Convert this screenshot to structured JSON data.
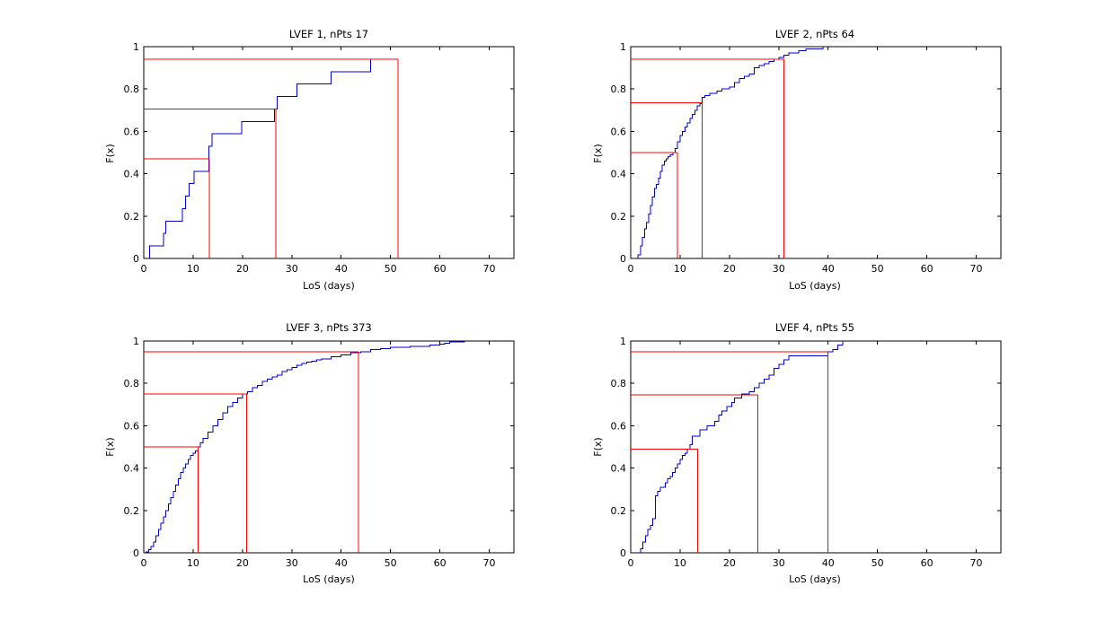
{
  "colors": {
    "ecdf": "#0000cc",
    "quantile": "#ff0000",
    "axes": "#000000",
    "background": "#ffffff"
  },
  "chart_data": [
    {
      "type": "line",
      "step": true,
      "title": "LVEF 1, nPts 17",
      "xlabel": "LoS (days)",
      "ylabel": "F(x)",
      "xlim": [
        0,
        75
      ],
      "ylim": [
        0,
        1
      ],
      "xticks": [
        "0",
        "10",
        "20",
        "30",
        "40",
        "50",
        "60",
        "70"
      ],
      "yticks": [
        "0",
        "0.2",
        "0.4",
        "0.6",
        "0.8",
        "1"
      ],
      "grid": false,
      "series": [
        {
          "x": [
            1.2,
            4.0,
            4.5,
            7.8,
            8.5,
            9.2,
            10.2,
            13.2,
            13.8,
            19.8,
            26.5,
            27.0,
            31.0,
            38.0,
            46.0
          ],
          "y": [
            0.0588,
            0.1176,
            0.1765,
            0.2353,
            0.2941,
            0.3529,
            0.4118,
            0.5294,
            0.5882,
            0.6471,
            0.7059,
            0.7647,
            0.8235,
            0.8824,
            0.9412
          ]
        }
      ],
      "quantiles": [
        {
          "p": 0.47,
          "x": 13.3
        },
        {
          "p": 0.706,
          "x": 26.8
        },
        {
          "p": 0.94,
          "x": 51.5
        }
      ]
    },
    {
      "type": "line",
      "step": true,
      "title": "LVEF 2, nPts 64",
      "xlabel": "LoS (days)",
      "ylabel": "F(x)",
      "xlim": [
        0,
        75
      ],
      "ylim": [
        0,
        1
      ],
      "xticks": [
        "0",
        "10",
        "20",
        "30",
        "40",
        "50",
        "60",
        "70"
      ],
      "yticks": [
        "0",
        "0.2",
        "0.4",
        "0.6",
        "0.8",
        "1"
      ],
      "grid": false,
      "series": [
        {
          "x": [
            1.5,
            2.0,
            2.4,
            2.8,
            3.2,
            3.6,
            4.0,
            4.4,
            4.8,
            5.2,
            5.6,
            6.0,
            6.4,
            6.8,
            7.2,
            7.6,
            8.0,
            8.6,
            9.0,
            9.5,
            10.0,
            10.5,
            11.0,
            11.5,
            12.0,
            12.5,
            13.0,
            13.5,
            14.0,
            14.5,
            15.0,
            16.0,
            17.5,
            18.5,
            20.0,
            21.0,
            22.0,
            23.0,
            24.0,
            25.0,
            26.0,
            27.0,
            28.0,
            29.0,
            30.0,
            31.0,
            32.0,
            34.0,
            35.5,
            39.0
          ],
          "y": [
            0.016,
            0.06,
            0.1,
            0.14,
            0.17,
            0.21,
            0.25,
            0.29,
            0.33,
            0.35,
            0.38,
            0.41,
            0.44,
            0.46,
            0.47,
            0.48,
            0.49,
            0.5,
            0.52,
            0.55,
            0.58,
            0.6,
            0.62,
            0.64,
            0.66,
            0.68,
            0.7,
            0.72,
            0.73,
            0.76,
            0.77,
            0.78,
            0.79,
            0.8,
            0.81,
            0.83,
            0.85,
            0.86,
            0.87,
            0.9,
            0.91,
            0.92,
            0.93,
            0.94,
            0.95,
            0.96,
            0.97,
            0.98,
            0.99,
            1.0
          ]
        }
      ],
      "quantiles": [
        {
          "p": 0.5,
          "x": 9.5
        },
        {
          "p": 0.735,
          "x": 14.5
        },
        {
          "p": 0.94,
          "x": 31.0
        }
      ]
    },
    {
      "type": "line",
      "step": true,
      "title": "LVEF 3, nPts 373",
      "xlabel": "LoS (days)",
      "ylabel": "F(x)",
      "xlim": [
        0,
        75
      ],
      "ylim": [
        0,
        1
      ],
      "xticks": [
        "0",
        "10",
        "20",
        "30",
        "40",
        "50",
        "60",
        "70"
      ],
      "yticks": [
        "0",
        "0.2",
        "0.4",
        "0.6",
        "0.8",
        "1"
      ],
      "grid": false,
      "series": [
        {
          "x": [
            0.5,
            1.0,
            1.5,
            2.0,
            2.5,
            3.0,
            3.5,
            4.0,
            4.5,
            5.0,
            5.5,
            6.0,
            6.5,
            7.0,
            7.5,
            8.0,
            8.5,
            9.0,
            9.5,
            10.0,
            10.5,
            11.0,
            11.5,
            12.0,
            13.0,
            14.0,
            15.0,
            16.0,
            17.0,
            18.0,
            19.0,
            20.0,
            21.0,
            22.0,
            23.0,
            24.0,
            25.0,
            26.0,
            27.0,
            28.0,
            29.0,
            30.0,
            31.0,
            32.0,
            33.0,
            34.0,
            35.0,
            36.0,
            38.0,
            40.0,
            42.0,
            44.0,
            46.0,
            48.0,
            50.0,
            54.0,
            58.0,
            60.0,
            61.0,
            62.0,
            65.0
          ],
          "y": [
            0.005,
            0.015,
            0.03,
            0.05,
            0.08,
            0.11,
            0.14,
            0.17,
            0.2,
            0.23,
            0.26,
            0.29,
            0.32,
            0.35,
            0.38,
            0.4,
            0.42,
            0.44,
            0.46,
            0.47,
            0.48,
            0.5,
            0.52,
            0.54,
            0.57,
            0.6,
            0.63,
            0.66,
            0.69,
            0.71,
            0.73,
            0.75,
            0.76,
            0.78,
            0.79,
            0.81,
            0.82,
            0.83,
            0.84,
            0.855,
            0.865,
            0.875,
            0.885,
            0.895,
            0.9,
            0.905,
            0.91,
            0.915,
            0.925,
            0.935,
            0.945,
            0.95,
            0.96,
            0.965,
            0.97,
            0.975,
            0.98,
            0.985,
            0.99,
            0.995,
            1.0
          ]
        }
      ],
      "quantiles": [
        {
          "p": 0.5,
          "x": 11.0
        },
        {
          "p": 0.75,
          "x": 20.8
        },
        {
          "p": 0.95,
          "x": 43.5
        }
      ]
    },
    {
      "type": "line",
      "step": true,
      "title": "LVEF 4, nPts 55",
      "xlabel": "LoS (days)",
      "ylabel": "F(x)",
      "xlim": [
        0,
        75
      ],
      "ylim": [
        0,
        1
      ],
      "xticks": [
        "0",
        "10",
        "20",
        "30",
        "40",
        "50",
        "60",
        "70"
      ],
      "yticks": [
        "0",
        "0.2",
        "0.4",
        "0.6",
        "0.8",
        "1"
      ],
      "grid": false,
      "series": [
        {
          "x": [
            2.0,
            2.5,
            3.0,
            3.5,
            4.0,
            4.5,
            5.0,
            5.5,
            6.0,
            7.0,
            7.5,
            8.0,
            8.5,
            9.0,
            9.5,
            10.0,
            10.5,
            11.0,
            11.5,
            12.0,
            12.5,
            14.0,
            15.5,
            17.0,
            17.8,
            18.5,
            19.5,
            20.5,
            21.0,
            22.5,
            24.0,
            25.0,
            26.0,
            27.0,
            28.0,
            29.0,
            30.0,
            31.0,
            32.0,
            40.0,
            41.0,
            42.0,
            43.0
          ],
          "y": [
            0.02,
            0.05,
            0.08,
            0.11,
            0.13,
            0.16,
            0.27,
            0.29,
            0.31,
            0.33,
            0.35,
            0.36,
            0.38,
            0.4,
            0.42,
            0.44,
            0.46,
            0.47,
            0.49,
            0.51,
            0.55,
            0.58,
            0.6,
            0.62,
            0.65,
            0.67,
            0.69,
            0.71,
            0.73,
            0.75,
            0.76,
            0.78,
            0.8,
            0.82,
            0.84,
            0.87,
            0.89,
            0.91,
            0.93,
            0.95,
            0.96,
            0.98,
            1.0
          ]
        }
      ],
      "quantiles": [
        {
          "p": 0.49,
          "x": 13.6
        },
        {
          "p": 0.745,
          "x": 25.8
        },
        {
          "p": 0.95,
          "x": 40.0
        }
      ]
    }
  ]
}
